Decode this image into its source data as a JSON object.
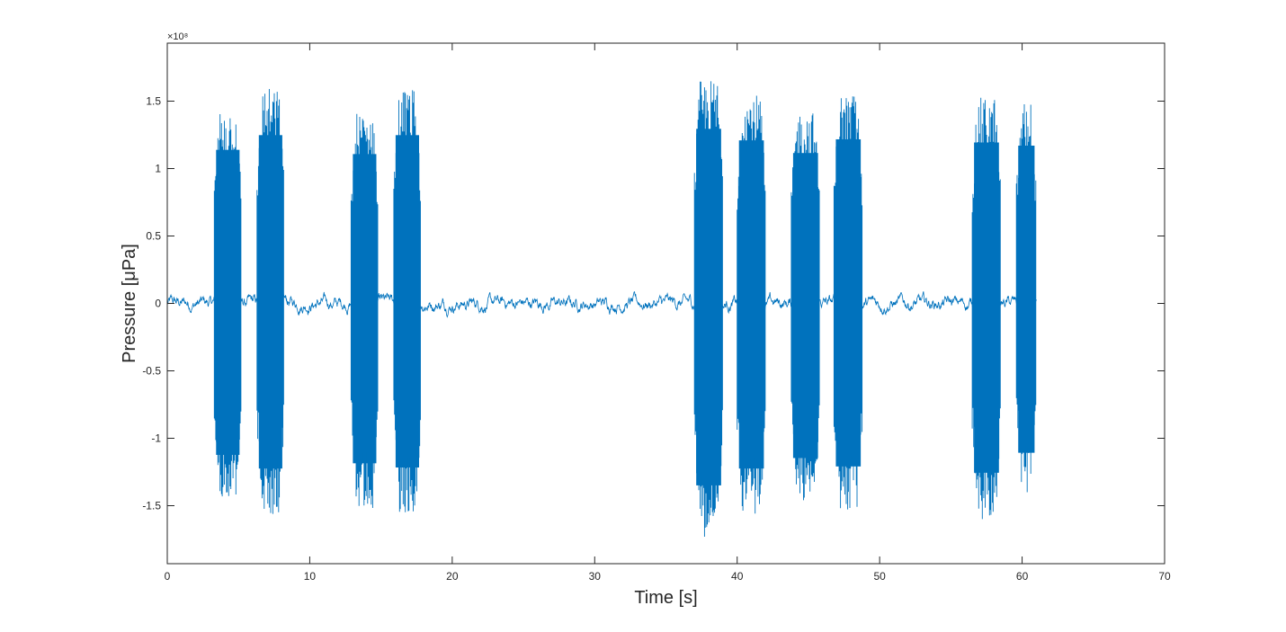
{
  "chart_data": {
    "type": "line",
    "title": "",
    "xlabel": "Time [s]",
    "ylabel": "Pressure [μPa]",
    "y_exponent_label": "×10⁸",
    "xlim": [
      0,
      70
    ],
    "ylim": [
      -1.93,
      1.93
    ],
    "x_ticks": [
      0,
      10,
      20,
      30,
      40,
      50,
      60,
      70
    ],
    "x_tick_labels": [
      "0",
      "10",
      "20",
      "30",
      "40",
      "50",
      "60",
      "70"
    ],
    "y_ticks": [
      1.5,
      1,
      0.5,
      0,
      -0.5,
      -1,
      -1.5
    ],
    "y_tick_labels": [
      "1.5",
      "1",
      "0.5",
      "0",
      "-0.5",
      "-1",
      "-1.5"
    ],
    "grid": false,
    "legend": "none",
    "series": [
      {
        "color": "#0072bd",
        "signal_extent_s": [
          0,
          61
        ],
        "background_amplitude_e8": 0.1,
        "bursts": [
          {
            "start": 3.3,
            "end": 5.2,
            "peak_pos": 1.46,
            "peak_neg": -1.44
          },
          {
            "start": 6.3,
            "end": 8.2,
            "peak_pos": 1.6,
            "peak_neg": -1.57
          },
          {
            "start": 12.9,
            "end": 14.8,
            "peak_pos": 1.42,
            "peak_neg": -1.52
          },
          {
            "start": 15.9,
            "end": 17.8,
            "peak_pos": 1.6,
            "peak_neg": -1.56
          },
          {
            "start": 37.0,
            "end": 39.0,
            "peak_pos": 1.66,
            "peak_neg": -1.73
          },
          {
            "start": 40.0,
            "end": 42.0,
            "peak_pos": 1.55,
            "peak_neg": -1.57
          },
          {
            "start": 43.8,
            "end": 45.8,
            "peak_pos": 1.43,
            "peak_neg": -1.47
          },
          {
            "start": 46.8,
            "end": 48.8,
            "peak_pos": 1.56,
            "peak_neg": -1.55
          },
          {
            "start": 56.5,
            "end": 58.5,
            "peak_pos": 1.53,
            "peak_neg": -1.61
          },
          {
            "start": 59.6,
            "end": 61.0,
            "peak_pos": 1.5,
            "peak_neg": -1.42
          }
        ]
      }
    ]
  }
}
